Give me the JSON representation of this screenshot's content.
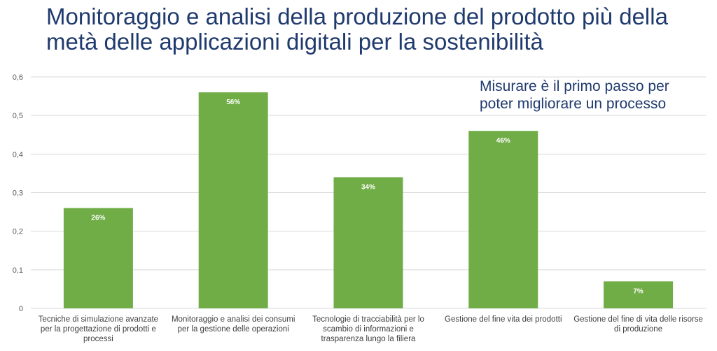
{
  "title": "Monitoraggio e analisi della produzione del prodotto più della metà delle applicazioni digitali per la sostenibilità",
  "callout": "Misurare è il primo passo per poter migliorare un processo",
  "colors": {
    "bar": "#70ad47",
    "grid": "#d9d9d9",
    "title": "#1f3a6e"
  },
  "chart_data": {
    "type": "bar",
    "categories": [
      "Tecniche di simulazione avanzate per la progettazione di prodotti e processi",
      "Monitoraggio e analisi dei consumi per la gestione delle operazioni",
      "Tecnologie di tracciabilità per lo scambio di informazioni e trasparenza lungo la filiera",
      "Gestione del fine vita dei prodotti",
      "Gestione del fine di vita delle risorse di produzione"
    ],
    "values": [
      0.26,
      0.56,
      0.34,
      0.46,
      0.07
    ],
    "data_labels": [
      "26%",
      "56%",
      "34%",
      "46%",
      "7%"
    ],
    "yticks": [
      "0",
      "0,1",
      "0,2",
      "0,3",
      "0,4",
      "0,5",
      "0,6"
    ],
    "ylim": [
      0,
      0.6
    ],
    "grid": true,
    "legend": "none"
  }
}
